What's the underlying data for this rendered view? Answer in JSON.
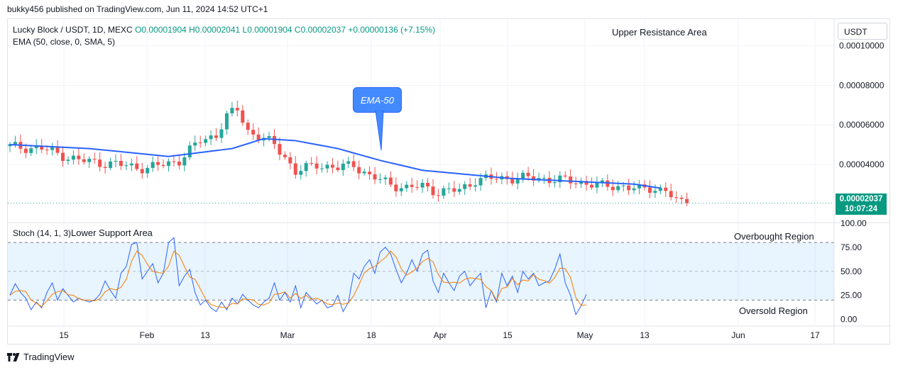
{
  "header": {
    "published": "bukky456 published on TradingView.com, Jun 11, 2024 14:52 UTC+1"
  },
  "legend": {
    "symbol": "Lucky Block / USDT, 1D, MEXC",
    "ohlc": "O0.00001904 H0.00002041 L0.00001904 C0.00002037 +0.00000136 (+7.15%)",
    "ema": "EMA (50, close, 0, SMA, 5)",
    "stoch": "Stoch (14, 1, 3)"
  },
  "annotations": {
    "upper": "Upper Resistance Area",
    "lower": "Lower Support Area",
    "overbought": "Overbought Region",
    "oversold": "Oversold Region",
    "ema_label": "EMA-50"
  },
  "currency_button": "USDT",
  "last_price": {
    "value": "0.00002037",
    "countdown": "10:07:24"
  },
  "footer": {
    "brand": "TradingView"
  },
  "colors": {
    "up": "#26a69a",
    "down": "#ef5350",
    "ema": "#2962ff",
    "stoch_k": "#2962ff",
    "stoch_d": "#f57c00",
    "band": "#2196f3"
  },
  "chart_data": [
    {
      "type": "candlestick",
      "title": "Lucky Block / USDT, 1D, MEXC",
      "x_ticks": [
        "15",
        "Feb",
        "13",
        "Mar",
        "18",
        "Apr",
        "15",
        "May",
        "13",
        "Jun",
        "17"
      ],
      "y_ticks": [
        "0.00010000",
        "0.00008000",
        "0.00006000",
        "0.00004000"
      ],
      "ylim": [
        1.09e-05,
        0.0001135
      ],
      "close_anchors": [
        [
          0,
          49
        ],
        [
          6,
          48
        ],
        [
          13,
          42
        ],
        [
          20,
          40
        ],
        [
          26,
          38
        ],
        [
          32,
          42
        ],
        [
          36,
          52
        ],
        [
          39,
          55
        ],
        [
          41,
          64
        ],
        [
          43,
          68
        ],
        [
          45,
          57
        ],
        [
          47,
          54
        ],
        [
          50,
          50
        ],
        [
          52,
          44
        ],
        [
          54,
          36
        ],
        [
          58,
          40
        ],
        [
          62,
          38
        ],
        [
          65,
          40
        ],
        [
          68,
          34
        ],
        [
          72,
          30
        ],
        [
          75,
          28
        ],
        [
          78,
          29
        ],
        [
          81,
          26
        ],
        [
          85,
          27
        ],
        [
          88,
          32
        ],
        [
          92,
          33
        ],
        [
          96,
          33
        ],
        [
          100,
          33
        ],
        [
          104,
          32
        ],
        [
          108,
          31
        ],
        [
          112,
          29
        ],
        [
          116,
          29
        ],
        [
          119,
          27
        ],
        [
          121,
          28
        ],
        [
          124,
          27
        ],
        [
          126,
          21
        ],
        [
          128,
          20.4
        ]
      ],
      "ema50_anchors": [
        [
          0,
          50
        ],
        [
          15,
          48
        ],
        [
          30,
          44
        ],
        [
          42,
          48
        ],
        [
          48,
          53
        ],
        [
          54,
          52
        ],
        [
          62,
          48
        ],
        [
          70,
          42
        ],
        [
          78,
          37
        ],
        [
          86,
          35
        ],
        [
          94,
          33
        ],
        [
          102,
          32
        ],
        [
          110,
          31
        ],
        [
          118,
          30
        ],
        [
          123,
          28
        ]
      ],
      "series": [
        {
          "name": "EMA (50, close, 0, SMA, 5)",
          "color": "#2962ff"
        }
      ],
      "last": 2.037e-05
    },
    {
      "type": "line",
      "title": "Stoch (14, 1, 3)",
      "y_ticks": [
        "100.00",
        "75.00",
        "50.00",
        "25.00",
        "0.00"
      ],
      "ylim": [
        -7,
        100
      ],
      "bands": {
        "upper": 80,
        "middle": 50,
        "lower": 20
      },
      "k_values": [
        25,
        37,
        28,
        22,
        10,
        18,
        12,
        28,
        38,
        20,
        32,
        25,
        18,
        22,
        20,
        18,
        20,
        26,
        40,
        30,
        22,
        48,
        55,
        78,
        80,
        42,
        50,
        58,
        38,
        48,
        80,
        85,
        35,
        45,
        52,
        28,
        15,
        20,
        12,
        8,
        18,
        10,
        22,
        16,
        26,
        20,
        15,
        12,
        18,
        22,
        38,
        20,
        28,
        18,
        35,
        12,
        28,
        22,
        16,
        20,
        12,
        14,
        25,
        8,
        18,
        48,
        42,
        55,
        62,
        48,
        70,
        75,
        68,
        52,
        38,
        48,
        62,
        50,
        68,
        72,
        40,
        28,
        48,
        38,
        30,
        45,
        50,
        35,
        42,
        48,
        12,
        30,
        18,
        48,
        35,
        45,
        28,
        50,
        42,
        48,
        35,
        38,
        40,
        52,
        68,
        38,
        25,
        5,
        14,
        26
      ]
    }
  ]
}
